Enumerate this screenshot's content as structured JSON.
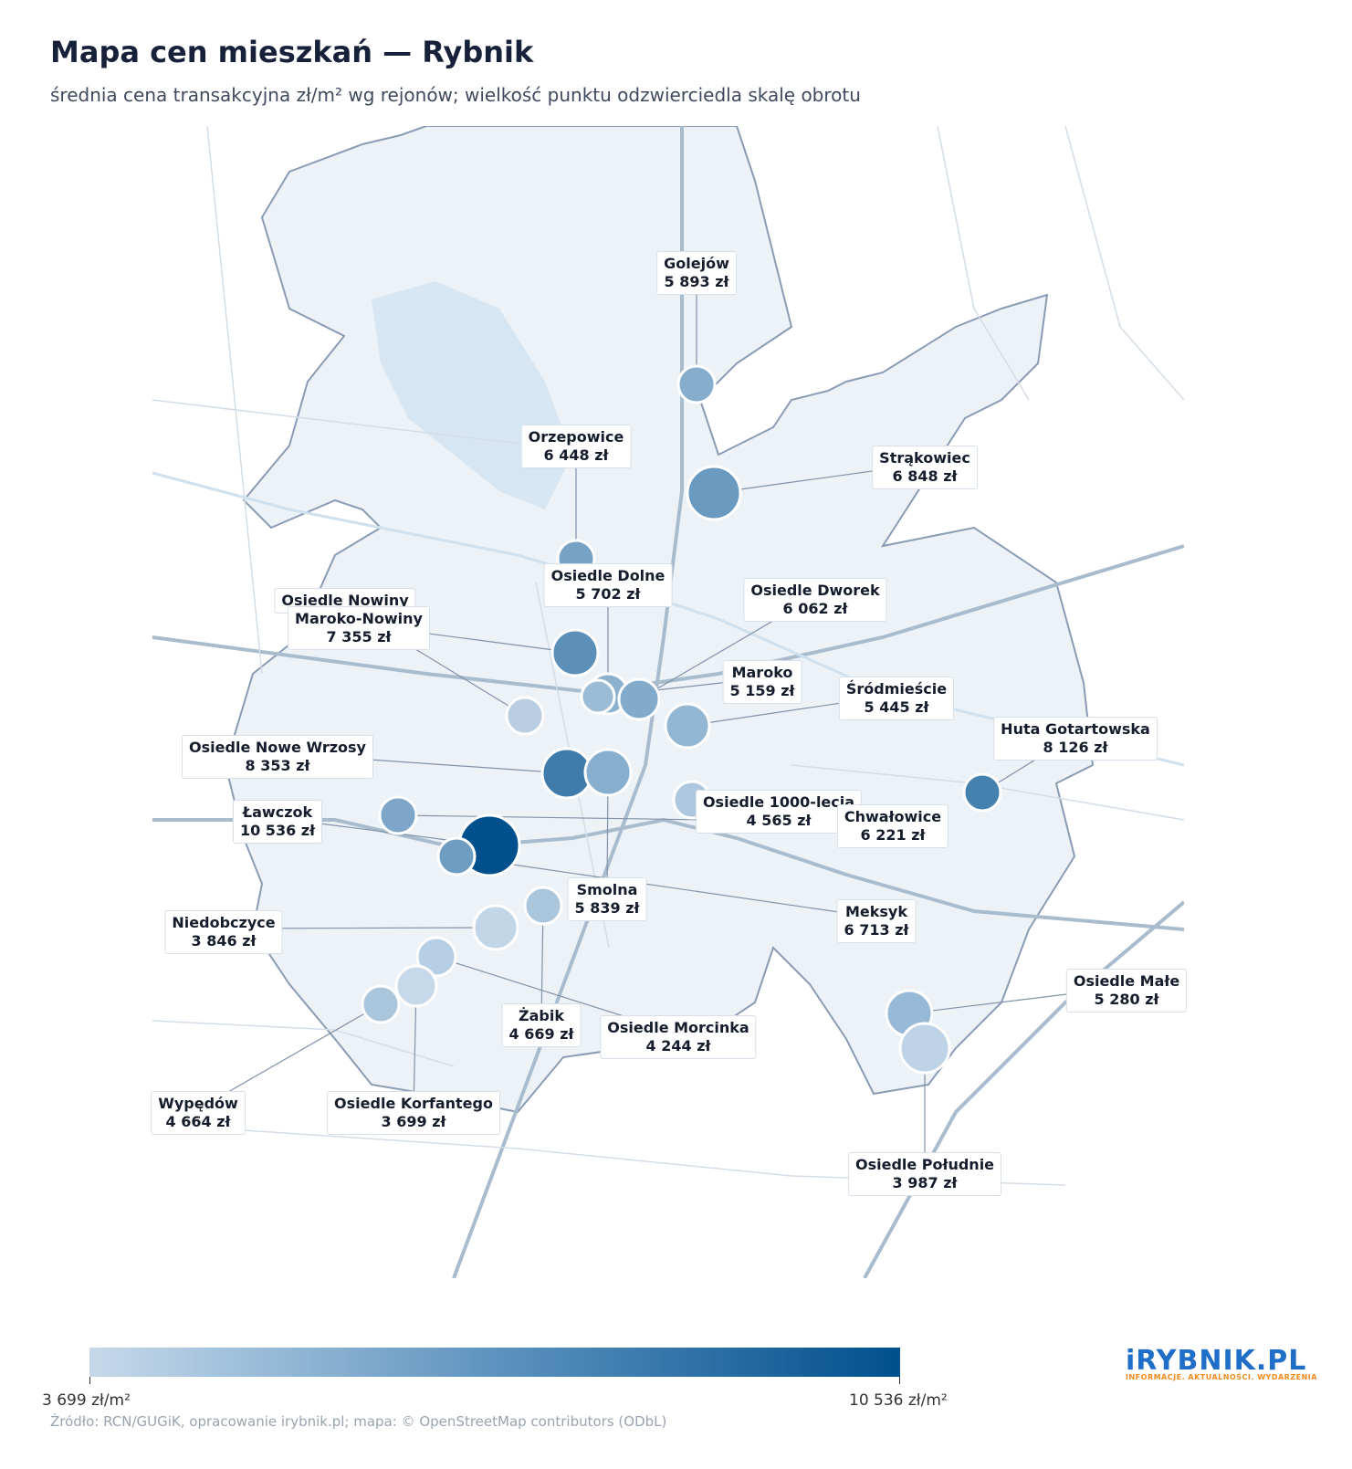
{
  "title": "Mapa cen mieszkań — Rybnik",
  "subtitle": "średnia cena transakcyjna zł/m² wg rejonów; wielkość punktu odzwierciedla skalę obrotu",
  "legend": {
    "min_label": "3 699 zł/m²",
    "max_label": "10 536 zł/m²",
    "min_value": 3699,
    "max_value": 10536,
    "color_low": "#c6d9ea",
    "color_high": "#00508e"
  },
  "source": "Źródło: RCN/GUGiK, opracowanie irybnik.pl; mapa: © OpenStreetMap contributors (ODbL)",
  "logo": {
    "text": "iRYBNIK.PL",
    "tagline": "INFORMACJE. AKTUALNOŚCI. WYDARZENIA"
  },
  "districts": [
    {
      "name": "Golejów",
      "price_label": "5 893 zł",
      "price": 5893
    },
    {
      "name": "Orzepowice",
      "price_label": "6 448 zł",
      "price": 6448
    },
    {
      "name": "Strąkowiec",
      "price_label": "6 848 zł",
      "price": 6848
    },
    {
      "name": "Osiedle Dolne",
      "price_label": "5 702 zł",
      "price": 5702
    },
    {
      "name": "Osiedle Dworek",
      "price_label": "6 062 zł",
      "price": 6062
    },
    {
      "name": "Osiedle Nowiny",
      "price_label": "",
      "price": null
    },
    {
      "name": "Maroko-Nowiny",
      "price_label": "7 355 zł",
      "price": 7355
    },
    {
      "name": "Maroko",
      "price_label": "5 159 zł",
      "price": 5159
    },
    {
      "name": "Śródmieście",
      "price_label": "5 445 zł",
      "price": 5445
    },
    {
      "name": "Huta Gotartowska",
      "price_label": "8 126 zł",
      "price": 8126
    },
    {
      "name": "Osiedle Nowe Wrzosy",
      "price_label": "8 353 zł",
      "price": 8353
    },
    {
      "name": "Osiedle 1000-lecia",
      "price_label": "4 565 zł",
      "price": 4565
    },
    {
      "name": "Chwałowice",
      "price_label": "6 221 zł",
      "price": 6221
    },
    {
      "name": "Ławczok",
      "price_label": "10 536 zł",
      "price": 10536
    },
    {
      "name": "Smolna",
      "price_label": "5 839 zł",
      "price": 5839
    },
    {
      "name": "Meksyk",
      "price_label": "6 713 zł",
      "price": 6713
    },
    {
      "name": "Niedobczyce",
      "price_label": "3 846 zł",
      "price": 3846
    },
    {
      "name": "Osiedle Małe",
      "price_label": "5 280 zł",
      "price": 5280
    },
    {
      "name": "Żabik",
      "price_label": "4 669 zł",
      "price": 4669
    },
    {
      "name": "Osiedle Morcinka",
      "price_label": "4 244 zł",
      "price": 4244
    },
    {
      "name": "Wypędów",
      "price_label": "4 664 zł",
      "price": 4664
    },
    {
      "name": "Osiedle Korfantego",
      "price_label": "3 699 zł",
      "price": 3699
    },
    {
      "name": "Osiedle Południe",
      "price_label": "3 987 zł",
      "price": 3987
    }
  ]
}
